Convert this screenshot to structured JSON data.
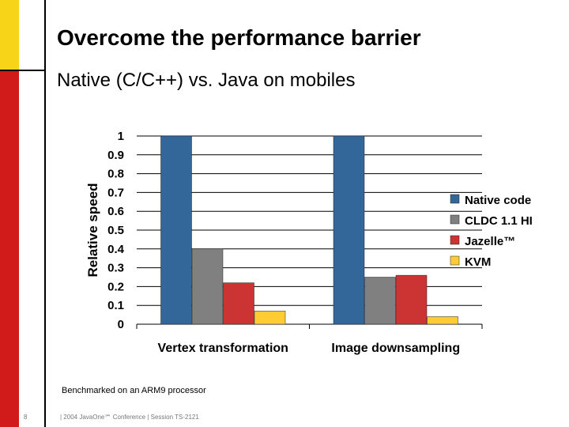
{
  "slide": {
    "title": "Overcome the performance barrier",
    "subtitle": "Native (C/C++) vs. Java on mobiles",
    "note": "Benchmarked on an ARM9 processor",
    "page_number": "8",
    "footer": "|  2004 JavaOne℠ Conference  |  Session TS-2121"
  },
  "colors": {
    "yellow_stripe": "#f7d417",
    "red_stripe": "#d11b1b"
  },
  "chart_data": {
    "type": "bar",
    "title": "",
    "xlabel": "",
    "ylabel": "Relative speed",
    "ylim": [
      0,
      1
    ],
    "yticks": [
      "0",
      "0.1",
      "0.2",
      "0.3",
      "0.4",
      "0.5",
      "0.6",
      "0.7",
      "0.8",
      "0.9",
      "1"
    ],
    "grid": true,
    "legend_position": "right",
    "categories": [
      "Vertex transformation",
      "Image downsampling"
    ],
    "series": [
      {
        "name": "Native code",
        "color": "#336699",
        "values": [
          1.0,
          1.0
        ]
      },
      {
        "name": "CLDC 1.1 HI",
        "color": "#808080",
        "values": [
          0.4,
          0.25
        ]
      },
      {
        "name": "Jazelle™",
        "color": "#cc3333",
        "values": [
          0.22,
          0.26
        ]
      },
      {
        "name": "KVM",
        "color": "#ffcc33",
        "values": [
          0.07,
          0.04
        ]
      }
    ]
  }
}
